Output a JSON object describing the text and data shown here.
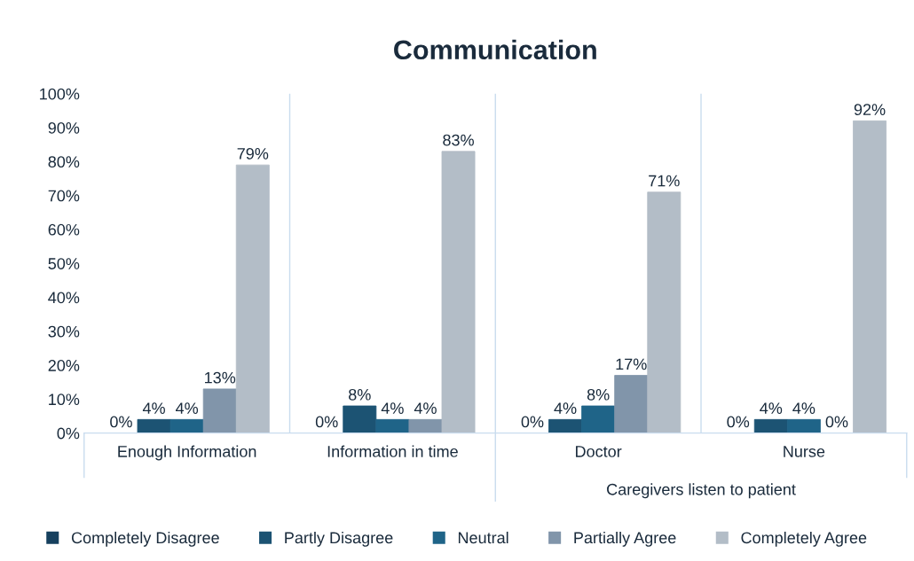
{
  "chart_data": {
    "type": "bar",
    "title": "Communication",
    "categories": [
      "Enough Information",
      "Information in time",
      "Doctor",
      "Nurse"
    ],
    "series": [
      {
        "name": "Completely Disagree",
        "color": "#16405e",
        "values": [
          0,
          0,
          0,
          0
        ],
        "value_labels": [
          "0%",
          "0%",
          "0%",
          "0%"
        ]
      },
      {
        "name": "Partly Disagree",
        "color": "#1c5373",
        "values": [
          4,
          8,
          4,
          4
        ],
        "value_labels": [
          "4%",
          "8%",
          "4%",
          "4%"
        ]
      },
      {
        "name": "Neutral",
        "color": "#1f6488",
        "values": [
          4,
          4,
          8,
          4
        ],
        "value_labels": [
          "4%",
          "4%",
          "8%",
          "4%"
        ]
      },
      {
        "name": "Partially Agree",
        "color": "#8195aa",
        "values": [
          13,
          4,
          17,
          0
        ],
        "value_labels": [
          "13%",
          "4%",
          "17%",
          "0%"
        ]
      },
      {
        "name": "Completely Agree",
        "color": "#b3bdc7",
        "values": [
          79,
          83,
          71,
          92
        ],
        "value_labels": [
          "79%",
          "83%",
          "71%",
          "92%"
        ]
      }
    ],
    "ylim": [
      0,
      100
    ],
    "yticks": [
      {
        "value": 0,
        "label": "0%"
      },
      {
        "value": 10,
        "label": "10%"
      },
      {
        "value": 20,
        "label": "20%"
      },
      {
        "value": 30,
        "label": "30%"
      },
      {
        "value": 40,
        "label": "40%"
      },
      {
        "value": 50,
        "label": "50%"
      },
      {
        "value": 60,
        "label": "60%"
      },
      {
        "value": 70,
        "label": "70%"
      },
      {
        "value": 80,
        "label": "80%"
      },
      {
        "value": 90,
        "label": "90%"
      },
      {
        "value": 100,
        "label": "100%"
      }
    ],
    "annotations": [
      "Caregivers listen to patient"
    ],
    "grid": "x",
    "legend": "bottom"
  }
}
